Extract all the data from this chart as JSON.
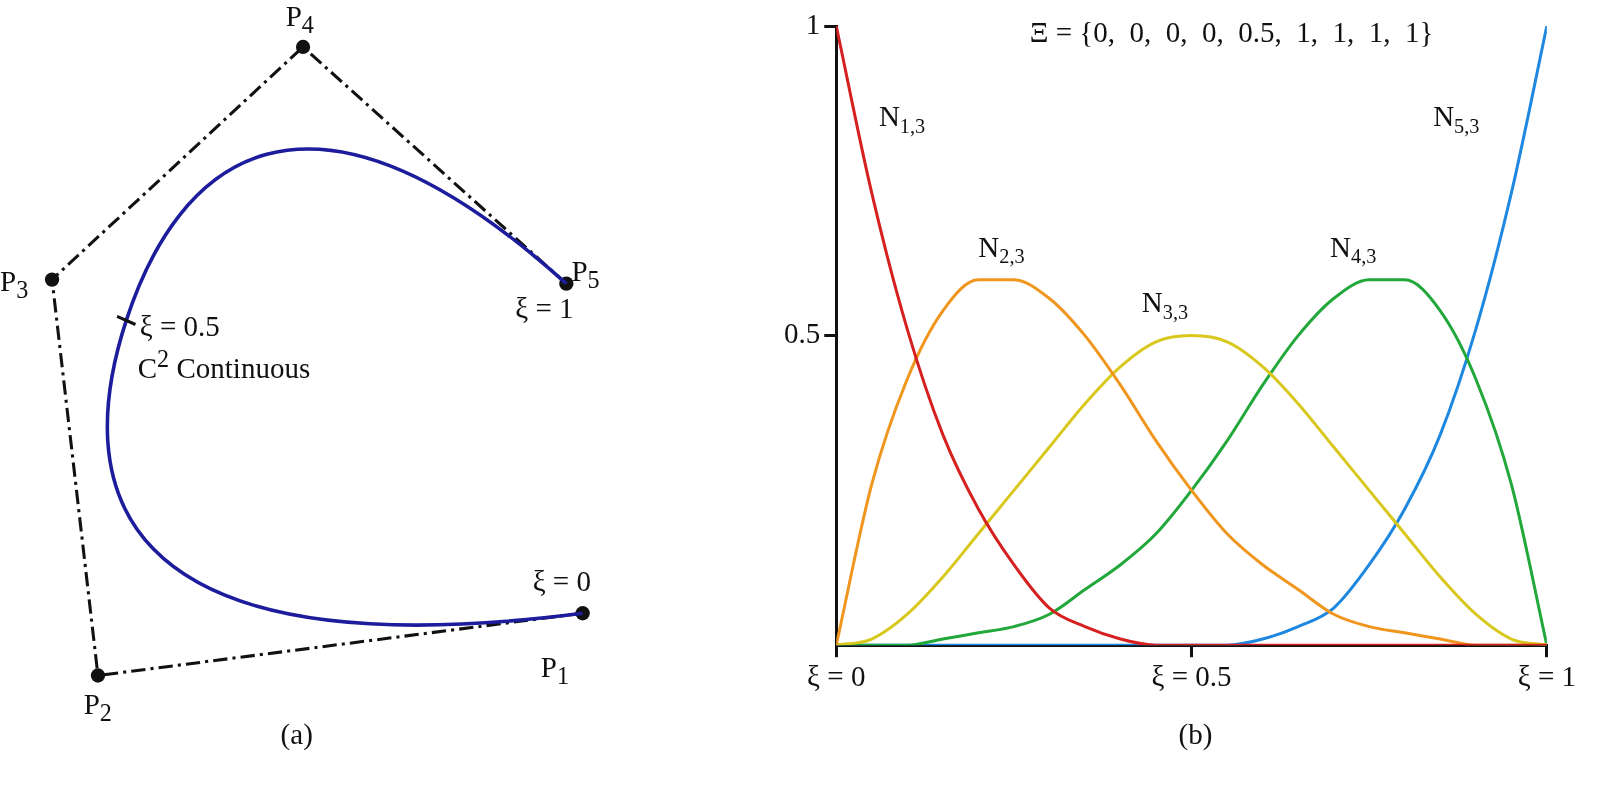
{
  "chart_data": [
    {
      "type": "other",
      "annotations": [
        "P$_{4}$",
        "P$_{3}$",
        "P$_{5}$",
        "ξ = 1",
        "ξ = 0.5",
        "C$^{2}$ Continuous",
        "ξ = 0",
        "P$_{1}$",
        "P$_{2}$",
        "(a)"
      ]
    },
    {
      "type": "line",
      "title": "Ξ = {0,  0,  0,  0,  0.5,  1,  1,  1,  1}",
      "x": [
        0,
        0.05,
        0.1,
        0.15,
        0.2,
        0.25,
        0.3,
        0.35,
        0.4,
        0.45,
        0.5,
        0.55,
        0.6,
        0.65,
        0.7,
        0.75,
        0.8,
        0.85,
        0.9,
        0.95,
        1
      ],
      "series": [
        {
          "name": "N$_{1,3}$",
          "color": "#d62020",
          "values": [
            1,
            0.73,
            0.51,
            0.34,
            0.22,
            0.13,
            0.06,
            0.03,
            0.01,
            0,
            0,
            0,
            0,
            0,
            0,
            0,
            0,
            0,
            0,
            0,
            0
          ]
        },
        {
          "name": "N$_{2,3}$",
          "color": "#f0961e",
          "values": [
            0,
            0.26,
            0.43,
            0.54,
            0.59,
            0.59,
            0.56,
            0.5,
            0.42,
            0.33,
            0.25,
            0.18,
            0.13,
            0.09,
            0.05,
            0.03,
            0.02,
            0.01,
            0,
            0,
            0
          ]
        },
        {
          "name": "N$_{3,3}$",
          "color": "#d8c81e",
          "values": [
            0,
            0.01,
            0.05,
            0.11,
            0.18,
            0.25,
            0.32,
            0.39,
            0.45,
            0.49,
            0.5,
            0.49,
            0.45,
            0.39,
            0.32,
            0.25,
            0.18,
            0.11,
            0.05,
            0.01,
            0
          ]
        },
        {
          "name": "N$_{4,3}$",
          "color": "#22a83a",
          "values": [
            0,
            0,
            0,
            0.01,
            0.02,
            0.03,
            0.05,
            0.09,
            0.13,
            0.18,
            0.25,
            0.33,
            0.42,
            0.5,
            0.56,
            0.59,
            0.59,
            0.54,
            0.43,
            0.26,
            0
          ]
        },
        {
          "name": "N$_{5,3}$",
          "color": "#1e88e0",
          "values": [
            0,
            0,
            0,
            0,
            0,
            0,
            0,
            0,
            0,
            0,
            0,
            0,
            0.01,
            0.03,
            0.06,
            0.13,
            0.22,
            0.34,
            0.51,
            0.73,
            1
          ]
        }
      ],
      "xlim": [
        0,
        1
      ],
      "xticks": [
        {
          "value": 0,
          "label": "ξ = 0"
        },
        {
          "value": 0.5,
          "label": "ξ = 0.5"
        },
        {
          "value": 1,
          "label": "ξ = 1"
        }
      ],
      "ylim": [
        0,
        1
      ],
      "yticks": [
        0.5,
        1
      ],
      "grid": false,
      "legend": false,
      "marker": "none",
      "line_style": "solid",
      "annotations": [
        "(b)"
      ]
    }
  ]
}
